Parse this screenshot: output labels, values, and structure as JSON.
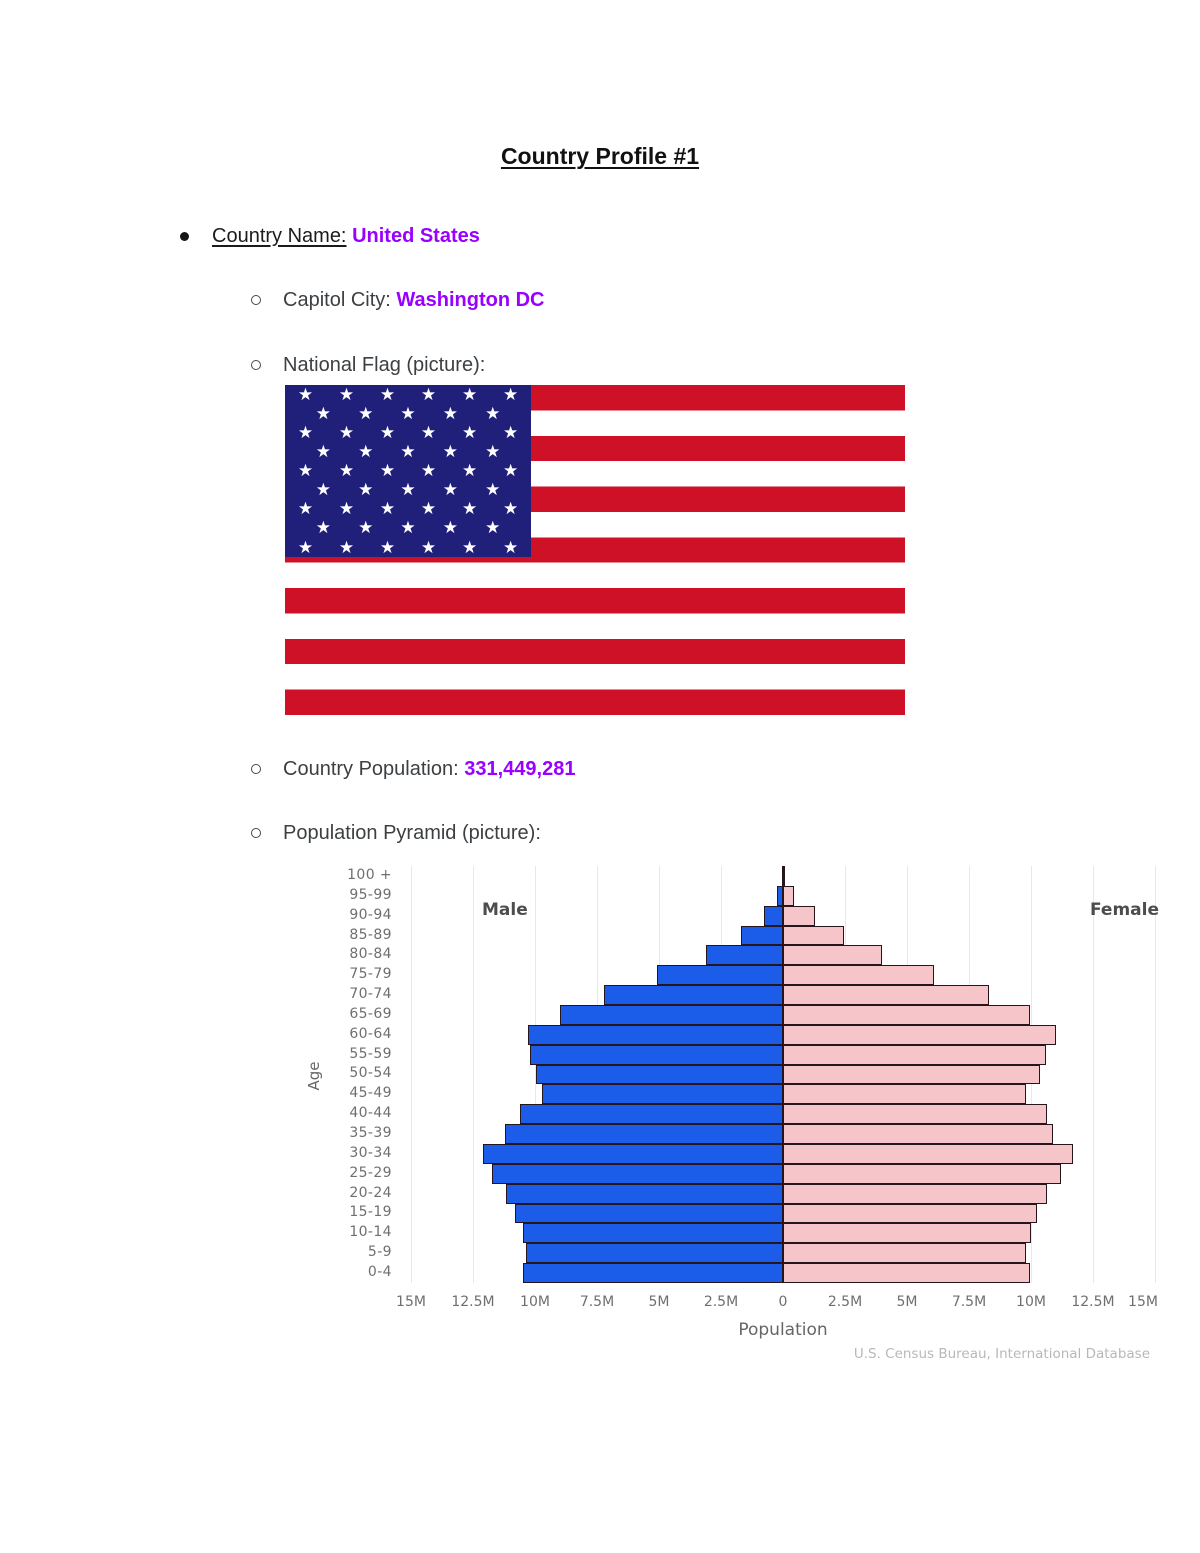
{
  "doc": {
    "title": "Country Profile #1",
    "country_name_label": "Country Name:",
    "country_name_value": "United States",
    "capitol_city_label": "Capitol City:",
    "capitol_city_value": "Washington DC",
    "national_flag_label": "National Flag (picture):",
    "country_population_label": "Country Population:",
    "country_population_value": "331,449,281",
    "population_pyramid_label": "Population Pyramid (picture):",
    "accent_color": "#9900ff"
  },
  "flag": {
    "country": "United States",
    "stripe_count": 13,
    "star_rows": [
      6,
      5,
      6,
      5,
      6,
      5,
      6,
      5,
      6
    ],
    "colors": {
      "red": "#ce1126",
      "white": "#ffffff",
      "canton_blue": "#20207a",
      "star": "#ffffff"
    }
  },
  "chart_data": {
    "type": "bar",
    "subtype": "population_pyramid",
    "xlabel": "Population",
    "ylabel": "Age",
    "male_label": "Male",
    "female_label": "Female",
    "attribution": "U.S. Census Bureau, International Database",
    "x_max_millions": 15,
    "x_ticks": [
      "15M",
      "12.5M",
      "10M",
      "7.5M",
      "5M",
      "2.5M",
      "0",
      "2.5M",
      "5M",
      "7.5M",
      "10M",
      "12.5M",
      "15M"
    ],
    "age_groups": [
      "100 +",
      "95-99",
      "90-94",
      "85-89",
      "80-84",
      "75-79",
      "70-74",
      "65-69",
      "60-64",
      "55-59",
      "50-54",
      "45-49",
      "40-44",
      "35-39",
      "30-34",
      "25-29",
      "20-24",
      "15-19",
      "10-14",
      "5-9",
      "0-4"
    ],
    "series": [
      {
        "name": "Male",
        "side": "left",
        "color": "#1b5ce8",
        "values_millions": [
          0.05,
          0.26,
          0.75,
          1.7,
          3.1,
          5.1,
          7.2,
          9.0,
          10.3,
          10.2,
          9.95,
          9.7,
          10.6,
          11.2,
          12.1,
          11.75,
          11.15,
          10.8,
          10.5,
          10.35,
          10.5
        ]
      },
      {
        "name": "Female",
        "side": "right",
        "color": "#f6c5c9",
        "values_millions": [
          0.1,
          0.45,
          1.3,
          2.45,
          4.0,
          6.1,
          8.3,
          9.95,
          11.0,
          10.6,
          10.35,
          9.8,
          10.65,
          10.9,
          11.7,
          11.2,
          10.65,
          10.25,
          10.0,
          9.8,
          9.95
        ]
      }
    ],
    "grid": true,
    "legend_position": "none",
    "gridline_color": "#e8e8e8",
    "bar_border_color": "#26161b"
  }
}
